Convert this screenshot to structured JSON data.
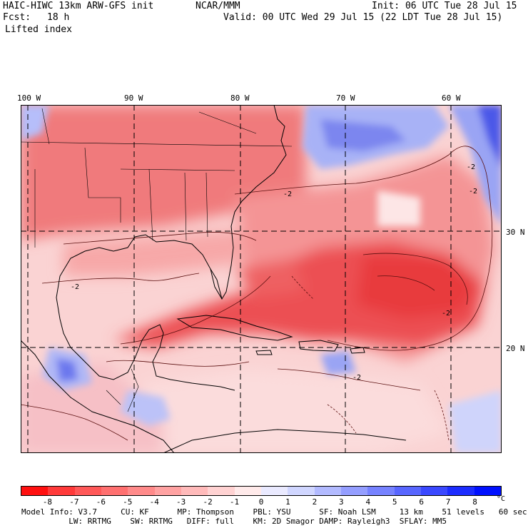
{
  "header": {
    "model": "HAIC-HIWC 13km ARW-GFS init",
    "center": "NCAR/MMM",
    "init": "Init: 06 UTC Tue 28 Jul 15",
    "fcst_label": "Fcst:",
    "fcst_value": "18 h",
    "valid": "Valid: 00 UTC Wed 29 Jul 15 (22 LDT Tue 28 Jul 15)",
    "field": "Lifted index"
  },
  "map": {
    "longitude_labels": [
      "100 W",
      "90 W",
      "80 W",
      "70 W",
      "60 W"
    ],
    "latitude_labels": [
      "30 N",
      "20 N"
    ],
    "contour_label": "-2",
    "colors": {
      "warm_dark": "#e8303a",
      "warm_mid": "#f27a7c",
      "warm_light": "#fbc4c4",
      "neutral": "#fbeeee",
      "cool_light": "#c8d0fb",
      "cool_mid": "#7c8af2",
      "cool_dark": "#3c46e6"
    }
  },
  "colorbar": {
    "ticks": [
      "-8",
      "-7",
      "-6",
      "-5",
      "-4",
      "-3",
      "-2",
      "-1",
      "0",
      "1",
      "2",
      "3",
      "4",
      "5",
      "6",
      "7",
      "8"
    ],
    "unit": "°C",
    "colors": [
      "#ff1010",
      "#ff3a3a",
      "#ff5858",
      "#ff7070",
      "#ff8a8a",
      "#ffa2a2",
      "#ffbaba",
      "#ffd2d2",
      "#ffeaea",
      "#eaeaff",
      "#d0d6ff",
      "#b2baff",
      "#949eff",
      "#7682ff",
      "#5866ff",
      "#3a48ff",
      "#1c2cff",
      "#0010ff"
    ]
  },
  "info": {
    "line1": "Model Info: V3.7     CU: KF      MP: Thompson    PBL: YSU      SF: Noah LSM     13 km    51 levels   60 sec",
    "line2": "          LW: RRTMG    SW: RRTMG   DIFF: full    KM: 2D Smagor DAMP: Rayleigh3  SFLAY: MM5"
  }
}
